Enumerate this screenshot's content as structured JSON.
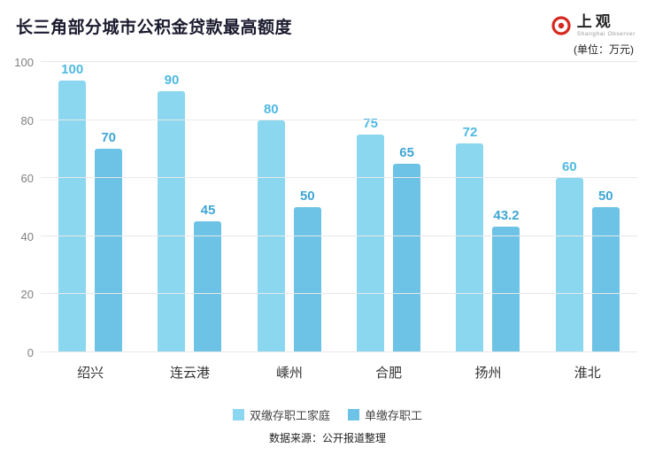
{
  "header": {
    "title": "长三角部分城市公积金贷款最高额度",
    "unit_note": "(单位：万元)",
    "logo": {
      "name": "上观",
      "subtitle": "Shanghai Observer",
      "brand_color": "#d5281e"
    }
  },
  "footer": {
    "source": "数据来源：公开报道整理"
  },
  "chart_data": {
    "type": "bar",
    "title": "长三角部分城市公积金贷款最高额度",
    "unit": "万元",
    "categories": [
      "绍兴",
      "连云港",
      "嵊州",
      "合肥",
      "扬州",
      "淮北"
    ],
    "series": [
      {
        "name": "双缴存职工家庭",
        "values": [
          100,
          90,
          80,
          75,
          72,
          60
        ],
        "color": "#8bd7ef",
        "label_color": "#4fb9e2"
      },
      {
        "name": "单缴存职工",
        "values": [
          70,
          45,
          50,
          65,
          43.2,
          50
        ],
        "color": "#6cc3e5",
        "label_color": "#3fa6d4"
      }
    ],
    "ylim": [
      0,
      100
    ],
    "yticks": [
      0,
      20,
      40,
      60,
      80,
      100
    ],
    "grid": true,
    "legend_position": "bottom"
  }
}
